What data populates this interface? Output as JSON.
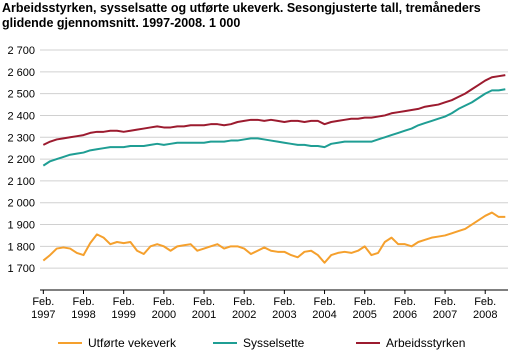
{
  "chart_data": {
    "type": "line",
    "title": "Arbeidsstyrken, sysselsatte og utførte ukeverk. Sesongjusterte tall, tremåneders glidende gjennomsnitt. 1997-2008. 1 000",
    "x": [
      1997.083,
      1997.25,
      1997.417,
      1997.583,
      1997.75,
      1997.917,
      1998.083,
      1998.25,
      1998.417,
      1998.583,
      1998.75,
      1998.917,
      1999.083,
      1999.25,
      1999.417,
      1999.583,
      1999.75,
      1999.917,
      2000.083,
      2000.25,
      2000.417,
      2000.583,
      2000.75,
      2000.917,
      2001.083,
      2001.25,
      2001.417,
      2001.583,
      2001.75,
      2001.917,
      2002.083,
      2002.25,
      2002.417,
      2002.583,
      2002.75,
      2002.917,
      2003.083,
      2003.25,
      2003.417,
      2003.583,
      2003.75,
      2003.917,
      2004.083,
      2004.25,
      2004.417,
      2004.583,
      2004.75,
      2004.917,
      2005.083,
      2005.25,
      2005.417,
      2005.583,
      2005.75,
      2005.917,
      2006.083,
      2006.25,
      2006.417,
      2006.583,
      2006.75,
      2006.917,
      2007.083,
      2007.25,
      2007.417,
      2007.583,
      2007.75,
      2007.917,
      2008.083,
      2008.25,
      2008.417,
      2008.583
    ],
    "series": [
      {
        "name": "Utførte vekeverk",
        "color": "#f5a02d",
        "values": [
          1735,
          1760,
          1790,
          1795,
          1790,
          1770,
          1760,
          1815,
          1855,
          1840,
          1810,
          1820,
          1815,
          1820,
          1780,
          1765,
          1800,
          1810,
          1800,
          1780,
          1800,
          1805,
          1810,
          1780,
          1790,
          1800,
          1810,
          1790,
          1800,
          1800,
          1790,
          1765,
          1780,
          1795,
          1780,
          1775,
          1775,
          1760,
          1750,
          1775,
          1780,
          1760,
          1725,
          1760,
          1770,
          1775,
          1770,
          1780,
          1800,
          1760,
          1770,
          1820,
          1840,
          1810,
          1810,
          1800,
          1820,
          1830,
          1840,
          1845,
          1850,
          1860,
          1870,
          1880,
          1900,
          1920,
          1940,
          1955,
          1935,
          1935
        ]
      },
      {
        "name": "Sysselsette",
        "color": "#1f9e94",
        "values": [
          2170,
          2190,
          2200,
          2210,
          2220,
          2225,
          2230,
          2240,
          2245,
          2250,
          2255,
          2255,
          2255,
          2260,
          2260,
          2260,
          2265,
          2270,
          2265,
          2270,
          2275,
          2275,
          2275,
          2275,
          2275,
          2280,
          2280,
          2280,
          2285,
          2285,
          2290,
          2295,
          2295,
          2290,
          2285,
          2280,
          2275,
          2270,
          2265,
          2265,
          2260,
          2260,
          2255,
          2270,
          2275,
          2280,
          2280,
          2280,
          2280,
          2280,
          2290,
          2300,
          2310,
          2320,
          2330,
          2340,
          2355,
          2365,
          2375,
          2385,
          2395,
          2410,
          2430,
          2445,
          2460,
          2480,
          2500,
          2515,
          2515,
          2520
        ]
      },
      {
        "name": "Arbeidsstyrken",
        "color": "#9c1b2f",
        "values": [
          2265,
          2280,
          2290,
          2295,
          2300,
          2305,
          2310,
          2320,
          2325,
          2325,
          2330,
          2330,
          2325,
          2330,
          2335,
          2340,
          2345,
          2350,
          2345,
          2345,
          2350,
          2350,
          2355,
          2355,
          2355,
          2360,
          2360,
          2355,
          2360,
          2370,
          2375,
          2380,
          2380,
          2375,
          2380,
          2375,
          2370,
          2375,
          2375,
          2370,
          2375,
          2375,
          2360,
          2370,
          2375,
          2380,
          2385,
          2385,
          2390,
          2390,
          2395,
          2400,
          2410,
          2415,
          2420,
          2425,
          2430,
          2440,
          2445,
          2450,
          2460,
          2470,
          2485,
          2500,
          2520,
          2540,
          2560,
          2575,
          2580,
          2585
        ]
      }
    ],
    "xlim": [
      1997.0,
      2008.65
    ],
    "xticks": [
      {
        "value": 1997.083,
        "label": "Feb. 1997"
      },
      {
        "value": 1998.083,
        "label": "Feb. 1998"
      },
      {
        "value": 1999.083,
        "label": "Feb. 1999"
      },
      {
        "value": 2000.083,
        "label": "Feb. 2000"
      },
      {
        "value": 2001.083,
        "label": "Feb. 2001"
      },
      {
        "value": 2002.083,
        "label": "Feb. 2002"
      },
      {
        "value": 2003.083,
        "label": "Feb. 2003"
      },
      {
        "value": 2004.083,
        "label": "Feb. 2004"
      },
      {
        "value": 2005.083,
        "label": "Feb. 2005"
      },
      {
        "value": 2006.083,
        "label": "Feb. 2006"
      },
      {
        "value": 2007.083,
        "label": "Feb. 2007"
      },
      {
        "value": 2008.083,
        "label": "Feb. 2008"
      }
    ],
    "ylim": [
      1600,
      2700
    ],
    "yticks": [
      {
        "value": 1700,
        "label": "1 700"
      },
      {
        "value": 1800,
        "label": "1 800"
      },
      {
        "value": 1900,
        "label": "1 900"
      },
      {
        "value": 2000,
        "label": "2 000"
      },
      {
        "value": 2100,
        "label": "2 100"
      },
      {
        "value": 2200,
        "label": "2 200"
      },
      {
        "value": 2300,
        "label": "2 300"
      },
      {
        "value": 2400,
        "label": "2 400"
      },
      {
        "value": 2500,
        "label": "2 500"
      },
      {
        "value": 2600,
        "label": "2 600"
      },
      {
        "value": 2700,
        "label": "2 700"
      }
    ],
    "grid": true
  }
}
